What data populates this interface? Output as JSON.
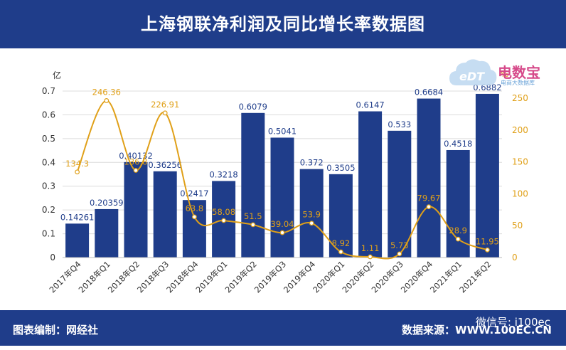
{
  "header": {
    "title": "上海钢联净利润及同比增长率数据图"
  },
  "footer": {
    "left": "图表编制：网经社",
    "right": "数据来源：WWW.100EC.CN",
    "wechat": "微信号: i100ec"
  },
  "logo": {
    "name": "电数宝",
    "sub": "电商大数据库",
    "badge": "eDT"
  },
  "chart_data": {
    "type": "bar",
    "title": "上海钢联净利润及同比增长率数据图",
    "categories": [
      "2017年Q4",
      "2018年Q1",
      "2018年Q2",
      "2018年Q3",
      "2018年Q4",
      "2019年Q1",
      "2019年Q2",
      "2019年Q3",
      "2019年Q4",
      "2020年Q1",
      "2020年Q2",
      "2020年Q3",
      "2020年Q4",
      "2021年Q1",
      "2021年Q2"
    ],
    "series": [
      {
        "name": "净利润",
        "axis": "left",
        "kind": "bar",
        "color": "#1f3d8a",
        "values": [
          0.14261,
          0.20359,
          0.40132,
          0.36256,
          0.2417,
          0.3218,
          0.6079,
          0.5041,
          0.372,
          0.3505,
          0.6147,
          0.533,
          0.6684,
          0.4518,
          0.6882
        ],
        "labels": [
          "0.14261",
          "0.20359",
          "0.40132",
          "0.36256",
          "0.2417",
          "0.3218",
          "0.6079",
          "0.5041",
          "0.372",
          "0.3505",
          "0.6147",
          "0.533",
          "0.6684",
          "0.4518",
          "0.6882"
        ]
      },
      {
        "name": "同比增长率",
        "axis": "right",
        "kind": "line",
        "color": "#e0a018",
        "values": [
          134.3,
          246.36,
          136.8,
          226.91,
          63.8,
          58.08,
          51.5,
          39.04,
          53.9,
          8.92,
          1.11,
          5.73,
          79.67,
          28.9,
          11.95
        ],
        "labels": [
          "134.3",
          "246.36",
          "136.8",
          "226.91",
          "63.8",
          "58.08",
          "51.5",
          "39.04",
          "53.9",
          "8.92",
          "1.11",
          "5.73",
          "79.67",
          "28.9",
          "11.95"
        ]
      }
    ],
    "y_left": {
      "unit": "亿",
      "ylim": [
        0,
        0.7
      ],
      "ticks": [
        "0",
        "0.1",
        "0.2",
        "0.3",
        "0.4",
        "0.5",
        "0.6",
        "0.7"
      ]
    },
    "y_right": {
      "unit": "%",
      "ylim": [
        0,
        250
      ],
      "ticks": [
        "0",
        "50",
        "100",
        "150",
        "200",
        "250"
      ]
    },
    "legend": "none"
  }
}
